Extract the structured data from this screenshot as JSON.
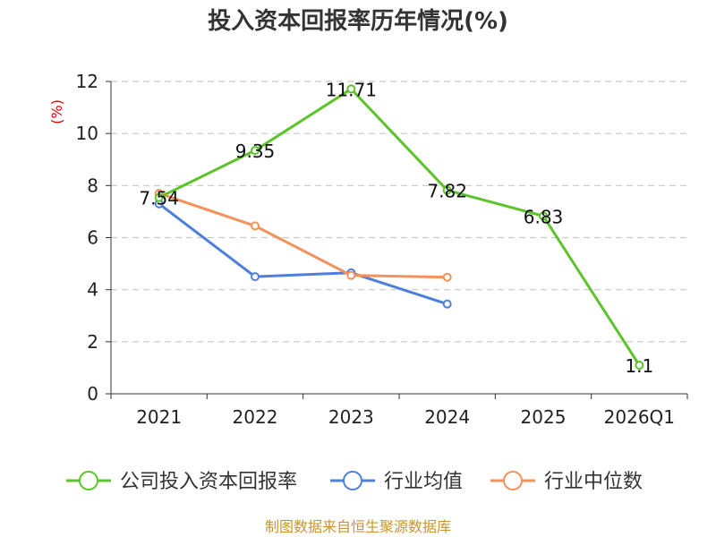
{
  "chart_data": {
    "type": "line",
    "title": "投入资本回报率历年情况(%)",
    "ylabel": "(%)",
    "xlabel": "",
    "categories": [
      "2021",
      "2022",
      "2023",
      "2024",
      "2025",
      "2026Q1"
    ],
    "ylim": [
      0,
      12
    ],
    "yticks": [
      0,
      2,
      4,
      6,
      8,
      10,
      12
    ],
    "grid": true,
    "legend_position": "bottom",
    "series": [
      {
        "name": "公司投入资本回报率",
        "color": "#5cc42a",
        "values": [
          7.54,
          9.35,
          11.71,
          7.82,
          6.83,
          1.1
        ],
        "labels": [
          "7.54",
          "9.35",
          "11.71",
          "7.82",
          "6.83",
          "1.1"
        ]
      },
      {
        "name": "行业均值",
        "color": "#4f7fdc",
        "values": [
          7.3,
          4.5,
          4.65,
          3.45,
          null,
          null
        ]
      },
      {
        "name": "行业中位数",
        "color": "#f5915a",
        "values": [
          7.7,
          6.45,
          4.55,
          4.48,
          null,
          null
        ]
      }
    ],
    "source": "制图数据来自恒生聚源数据库"
  }
}
